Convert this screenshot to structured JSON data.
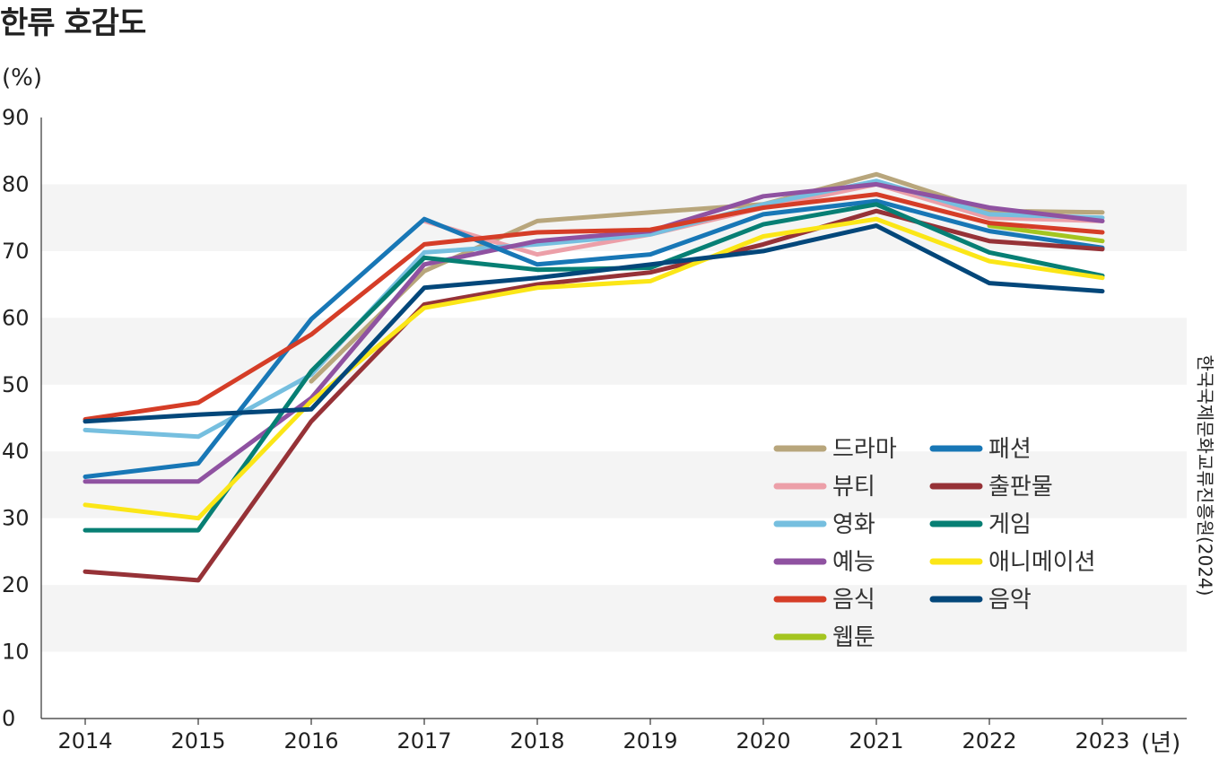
{
  "title": "한류 호감도",
  "y_unit": "(%)",
  "x_unit": "(년)",
  "source": "한국국제문화교류진흥원(2024)",
  "chart_data": {
    "type": "line",
    "title": "한류 호감도",
    "xlabel": "(년)",
    "ylabel": "(%)",
    "ylim": [
      0,
      90
    ],
    "yticks": [
      "0",
      "10",
      "20",
      "30",
      "40",
      "50",
      "60",
      "70",
      "80",
      "90"
    ],
    "grid": "alternating horizontal bands",
    "legend_placement": "bottom-right inside plot, two columns",
    "categories": [
      "2014",
      "2015",
      "2016",
      "2017",
      "2018",
      "2019",
      "2020",
      "2021",
      "2022",
      "2023"
    ],
    "series": [
      {
        "name": "드라마",
        "color": "#b8a67c",
        "values": [
          null,
          null,
          50.5,
          67.0,
          74.5,
          75.8,
          77.0,
          81.5,
          76.0,
          75.8
        ]
      },
      {
        "name": "뷰티",
        "color": "#ec9fa8",
        "values": [
          null,
          null,
          null,
          74.5,
          69.5,
          72.5,
          76.5,
          80.0,
          75.0,
          74.5
        ]
      },
      {
        "name": "영화",
        "color": "#76bfdf",
        "values": [
          43.2,
          42.2,
          51.5,
          69.8,
          71.0,
          72.5,
          77.0,
          80.5,
          75.5,
          75.0
        ]
      },
      {
        "name": "예능",
        "color": "#8f52a1",
        "values": [
          35.5,
          35.5,
          48.0,
          68.0,
          71.5,
          73.0,
          78.2,
          80.0,
          76.5,
          74.5
        ]
      },
      {
        "name": "음식",
        "color": "#d53d27",
        "values": [
          44.8,
          47.3,
          57.5,
          71.0,
          72.8,
          73.2,
          76.5,
          78.5,
          74.2,
          72.8
        ]
      },
      {
        "name": "웹툰",
        "color": "#a4c520",
        "values": [
          null,
          null,
          null,
          null,
          null,
          null,
          null,
          null,
          73.8,
          71.5
        ]
      },
      {
        "name": "패션",
        "color": "#1877b6",
        "values": [
          36.2,
          38.2,
          59.8,
          74.8,
          68.0,
          69.5,
          75.5,
          77.5,
          73.0,
          70.5
        ]
      },
      {
        "name": "출판물",
        "color": "#963237",
        "values": [
          22.0,
          20.7,
          44.5,
          62.0,
          65.0,
          66.8,
          71.0,
          76.0,
          71.5,
          70.3
        ]
      },
      {
        "name": "게임",
        "color": "#077f74",
        "values": [
          28.2,
          28.2,
          52.0,
          69.0,
          67.2,
          67.5,
          74.0,
          77.0,
          69.8,
          66.3
        ]
      },
      {
        "name": "애니메이션",
        "color": "#fbe617",
        "values": [
          32.0,
          30.0,
          47.5,
          61.5,
          64.5,
          65.5,
          72.2,
          74.8,
          68.5,
          66.0
        ]
      },
      {
        "name": "음악",
        "color": "#03477a",
        "values": [
          44.5,
          45.5,
          46.3,
          64.5,
          66.0,
          68.0,
          70.0,
          73.8,
          65.2,
          64.0
        ]
      }
    ]
  }
}
